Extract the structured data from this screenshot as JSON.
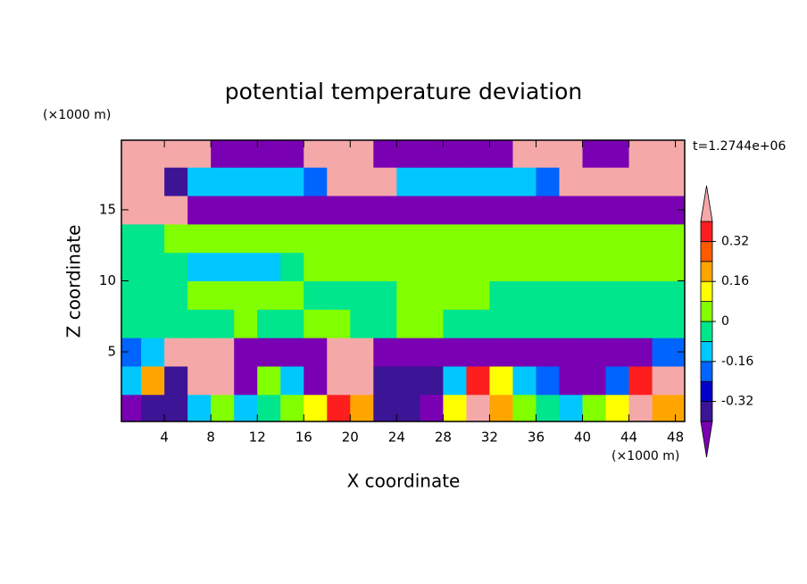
{
  "chart_data": {
    "type": "contour",
    "title": "potential temperature deviation",
    "x_label": "X coordinate",
    "y_label": "Z coordinate",
    "x_unit": "(×1000 m)",
    "y_unit": "(×1000 m)",
    "time_label": "t=1.2744e+06",
    "xlim": [
      0.3,
      48.8
    ],
    "ylim": [
      0.1,
      19.9
    ],
    "xticks": [
      4,
      8,
      12,
      16,
      20,
      24,
      28,
      32,
      36,
      40,
      44,
      48
    ],
    "yticks": [
      5,
      10,
      15
    ],
    "levels": [
      -0.4,
      -0.32,
      -0.24,
      -0.16,
      -0.08,
      0,
      0.08,
      0.16,
      0.24,
      0.32,
      0.4
    ],
    "colors": [
      "#7a00b4",
      "#3c1496",
      "#0000c8",
      "#0064ff",
      "#00c8ff",
      "#00e68c",
      "#82ff00",
      "#ffff00",
      "#ffa500",
      "#ff5a00",
      "#ff1e1e",
      "#f5a8a8"
    ],
    "colorbar_ticks": [
      -0.32,
      -0.16,
      0,
      0.16,
      0.32
    ],
    "x": [
      1,
      3,
      5,
      7,
      9,
      11,
      13,
      15,
      17,
      19,
      21,
      23,
      25,
      27,
      29,
      31,
      33,
      35,
      37,
      39,
      41,
      43,
      45,
      47,
      49
    ],
    "y": [
      1,
      3,
      5,
      7,
      9,
      11,
      13,
      15,
      17,
      19
    ],
    "z": [
      [
        -0.5,
        -0.36,
        -0.36,
        -0.12,
        0.04,
        -0.12,
        -0.04,
        0.04,
        0.12,
        0.36,
        0.2,
        -0.36,
        -0.36,
        -0.5,
        0.12,
        0.5,
        0.2,
        0.04,
        -0.04,
        -0.12,
        0.04,
        0.12,
        0.5,
        0.2,
        0.2
      ],
      [
        -0.12,
        0.2,
        -0.36,
        0.5,
        0.5,
        -0.5,
        0.04,
        -0.12,
        -0.5,
        0.5,
        0.5,
        -0.36,
        -0.36,
        -0.36,
        -0.12,
        0.36,
        0.12,
        -0.12,
        -0.2,
        -0.5,
        -0.5,
        -0.2,
        0.36,
        0.5,
        0.5
      ],
      [
        -0.2,
        -0.12,
        0.5,
        0.5,
        0.5,
        -0.5,
        -0.5,
        -0.5,
        -0.5,
        0.5,
        0.5,
        -0.5,
        -0.5,
        -0.5,
        -0.5,
        -0.5,
        -0.5,
        -0.5,
        -0.5,
        -0.5,
        -0.5,
        -0.5,
        -0.5,
        -0.2,
        -0.2
      ],
      [
        -0.04,
        -0.04,
        -0.04,
        -0.04,
        -0.04,
        0.04,
        -0.04,
        -0.04,
        0.04,
        0.04,
        -0.04,
        -0.04,
        0.04,
        0.04,
        -0.04,
        -0.04,
        -0.04,
        -0.04,
        -0.04,
        -0.04,
        -0.04,
        -0.04,
        -0.04,
        -0.04,
        -0.04
      ],
      [
        -0.04,
        -0.04,
        -0.04,
        0.04,
        0.04,
        0.04,
        0.04,
        0.04,
        -0.04,
        -0.04,
        -0.04,
        -0.04,
        0.04,
        0.04,
        0.04,
        0.04,
        -0.04,
        -0.04,
        -0.04,
        -0.04,
        -0.04,
        -0.04,
        -0.04,
        -0.04,
        -0.04
      ],
      [
        -0.04,
        -0.04,
        -0.04,
        -0.12,
        -0.12,
        -0.12,
        -0.12,
        -0.04,
        0.04,
        0.04,
        0.04,
        0.04,
        0.04,
        0.04,
        0.04,
        0.04,
        0.04,
        0.04,
        0.04,
        0.04,
        0.04,
        0.04,
        0.04,
        0.04,
        0.04
      ],
      [
        -0.04,
        -0.04,
        0.04,
        0.04,
        0.04,
        0.04,
        0.04,
        0.04,
        0.04,
        0.04,
        0.04,
        0.04,
        0.04,
        0.04,
        0.04,
        0.04,
        0.04,
        0.04,
        0.04,
        0.04,
        0.04,
        0.04,
        0.04,
        0.04,
        0.04
      ],
      [
        0.5,
        0.5,
        0.5,
        -0.5,
        -0.5,
        -0.5,
        -0.5,
        -0.5,
        -0.5,
        -0.5,
        -0.5,
        -0.5,
        -0.5,
        -0.5,
        -0.5,
        -0.5,
        -0.5,
        -0.5,
        -0.5,
        -0.5,
        -0.5,
        -0.5,
        -0.5,
        -0.5,
        -0.5
      ],
      [
        0.5,
        0.5,
        -0.36,
        -0.12,
        -0.12,
        -0.12,
        -0.12,
        -0.12,
        -0.2,
        0.5,
        0.5,
        0.5,
        -0.12,
        -0.12,
        -0.12,
        -0.12,
        -0.12,
        -0.12,
        -0.2,
        0.5,
        0.5,
        0.5,
        0.5,
        0.5,
        0.5
      ],
      [
        0.5,
        0.5,
        0.5,
        0.5,
        -0.5,
        -0.5,
        -0.5,
        -0.5,
        0.5,
        0.5,
        0.5,
        -0.5,
        -0.5,
        -0.5,
        -0.5,
        -0.5,
        -0.5,
        0.5,
        0.5,
        0.5,
        -0.5,
        -0.5,
        0.5,
        0.5,
        0.5
      ]
    ]
  }
}
